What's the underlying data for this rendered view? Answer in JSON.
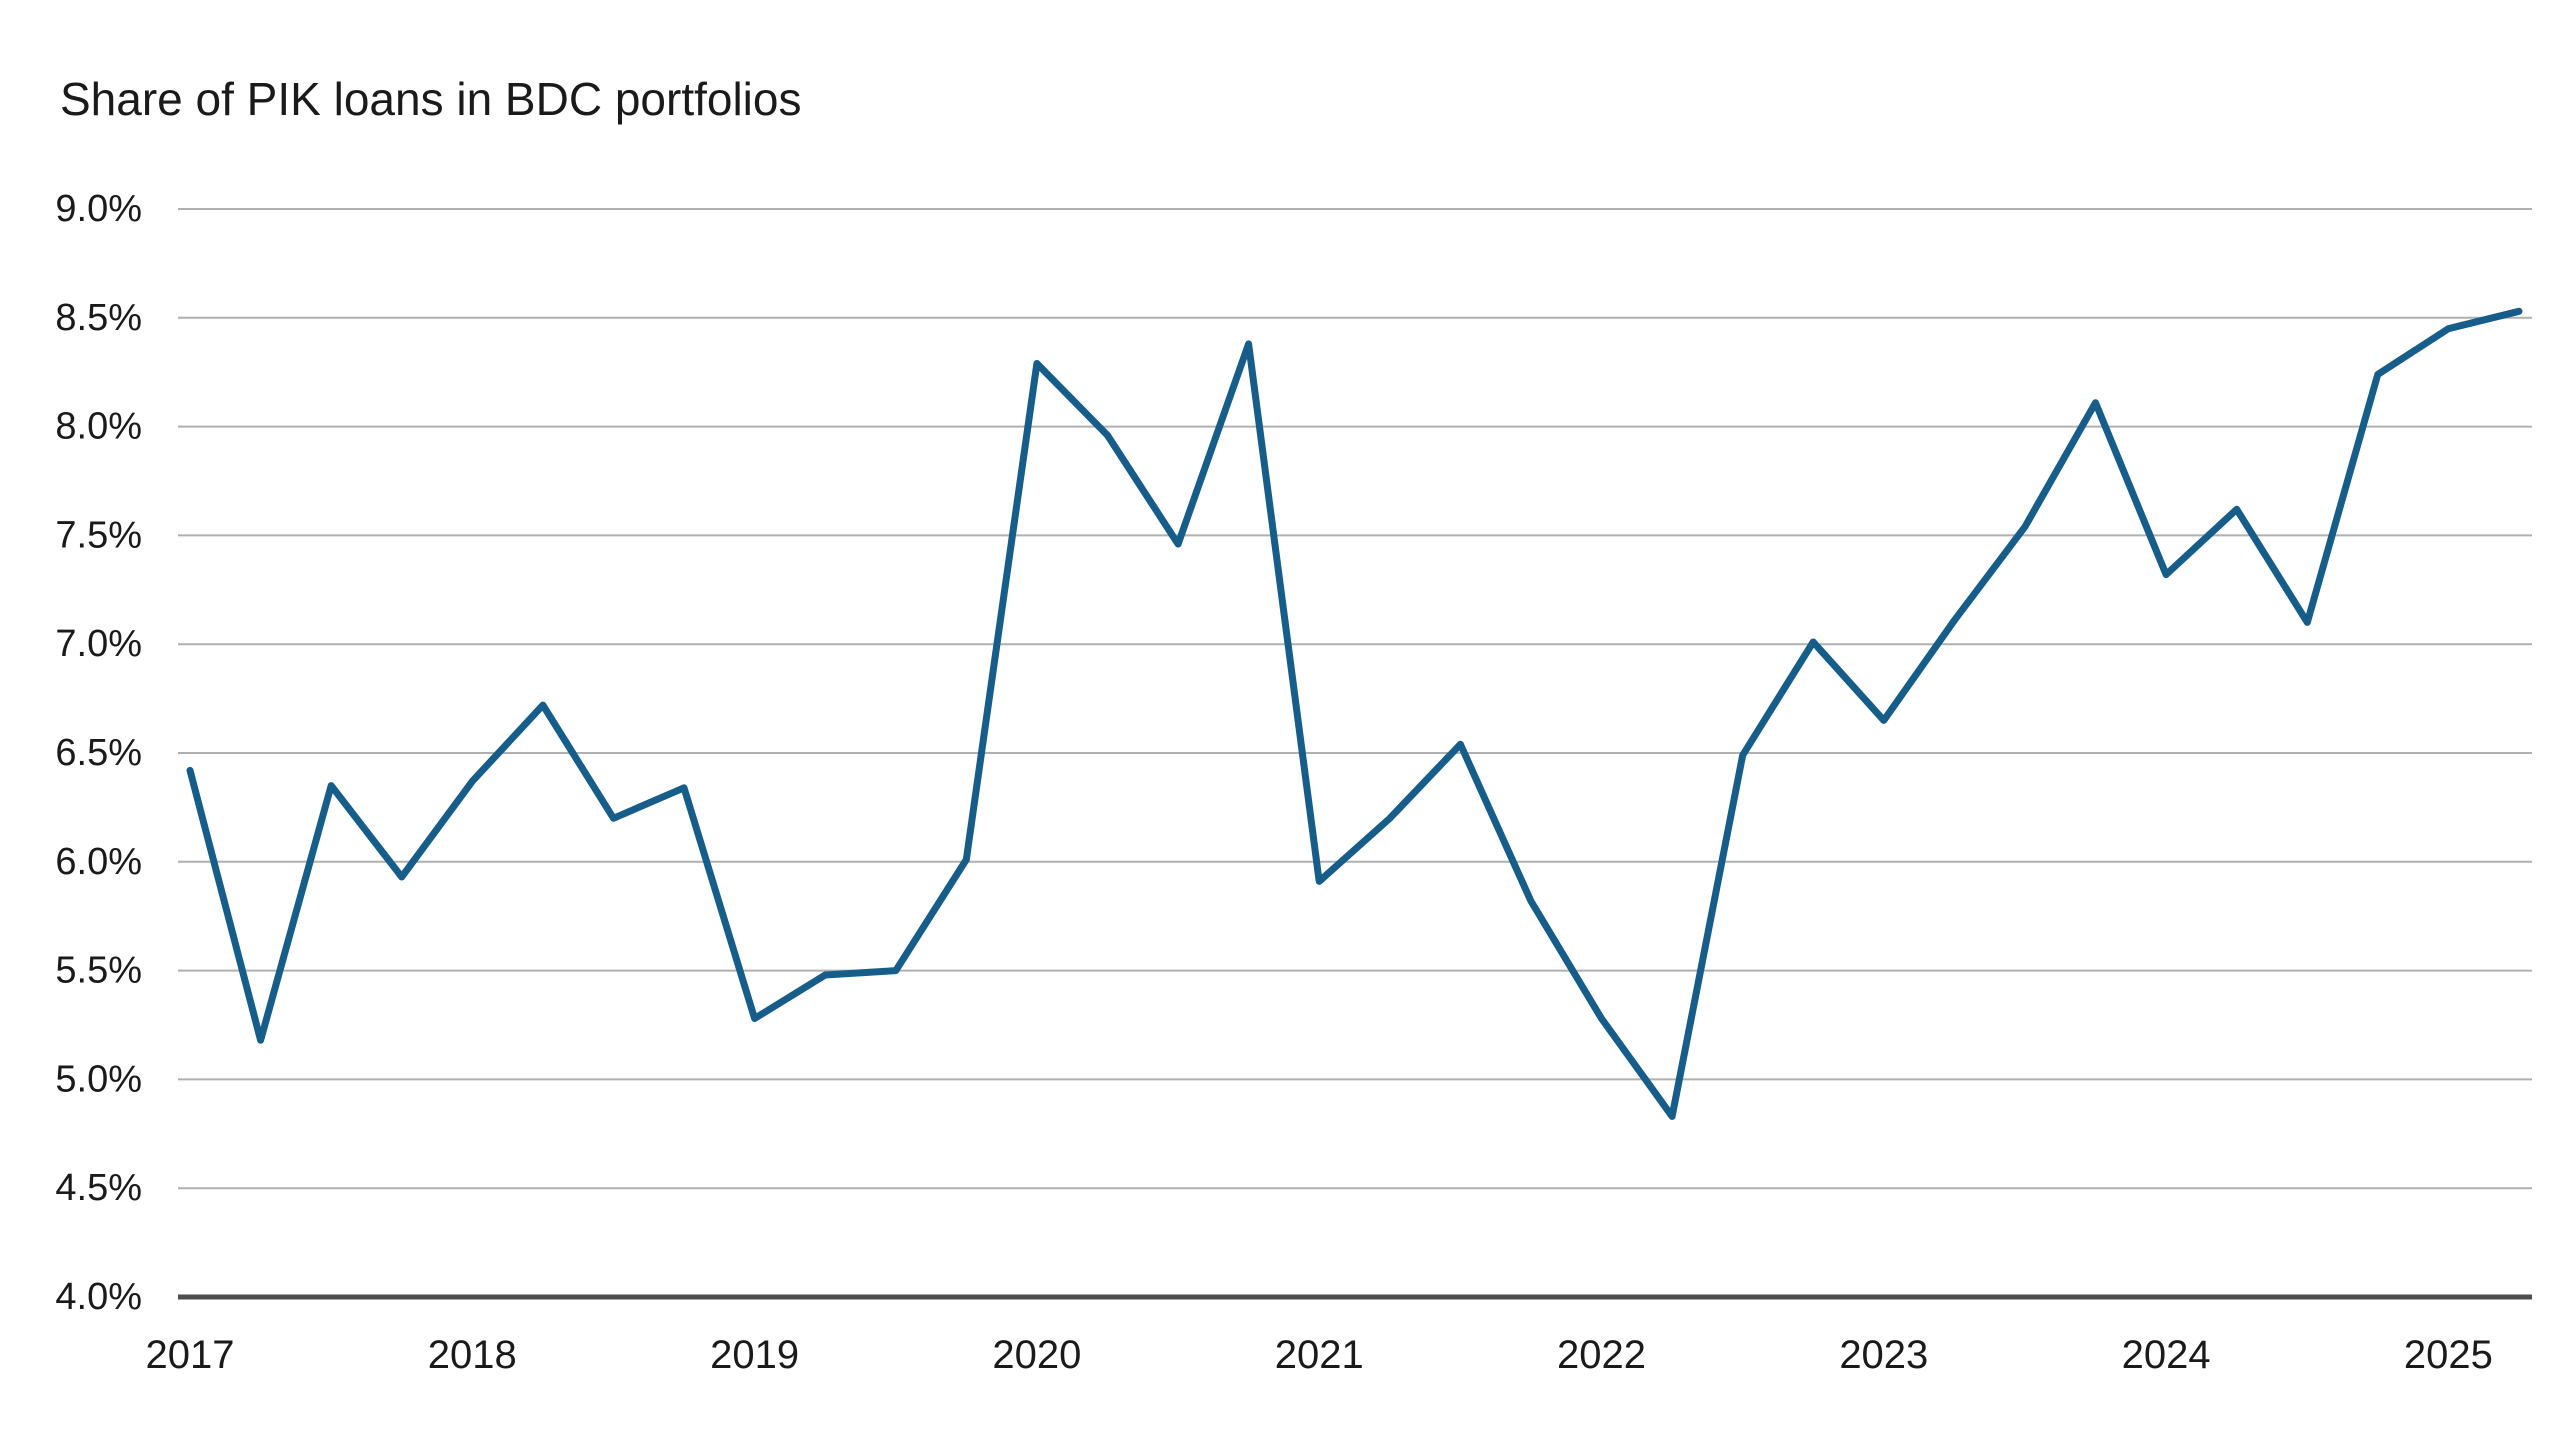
{
  "title": "Share of PIK loans in BDC portfolios",
  "colors": {
    "line": "#175d8a",
    "gridline": "#b0b0b0",
    "axis_line": "#4d4d4d",
    "text": "#1a1a1a",
    "background": "#ffffff"
  },
  "chart_data": {
    "type": "line",
    "title": "Share of PIK loans in BDC portfolios",
    "unit": "%",
    "ylim": [
      4.0,
      9.0
    ],
    "y_ticks": [
      4.0,
      4.5,
      5.0,
      5.5,
      6.0,
      6.5,
      7.0,
      7.5,
      8.0,
      8.5,
      9.0
    ],
    "y_tick_labels": [
      "4.0%",
      "4.5%",
      "5.0%",
      "5.5%",
      "6.0%",
      "6.5%",
      "7.0%",
      "7.5%",
      "8.0%",
      "8.5%",
      "9.0%"
    ],
    "x_tick_labels": [
      "2017",
      "2018",
      "2019",
      "2020",
      "2021",
      "2022",
      "2023",
      "2024",
      "2025"
    ],
    "x_tick_indices": [
      0,
      4,
      8,
      12,
      16,
      20,
      24,
      28,
      32
    ],
    "grid": "horizontal",
    "legend": "none",
    "x": [
      "2017 Q1",
      "2017 Q2",
      "2017 Q3",
      "2017 Q4",
      "2018 Q1",
      "2018 Q2",
      "2018 Q3",
      "2018 Q4",
      "2019 Q1",
      "2019 Q2",
      "2019 Q3",
      "2019 Q4",
      "2020 Q1",
      "2020 Q2",
      "2020 Q3",
      "2020 Q4",
      "2021 Q1",
      "2021 Q2",
      "2021 Q3",
      "2021 Q4",
      "2022 Q1",
      "2022 Q2",
      "2022 Q3",
      "2022 Q4",
      "2023 Q1",
      "2023 Q2",
      "2023 Q3",
      "2023 Q4",
      "2024 Q1",
      "2024 Q2",
      "2024 Q3",
      "2024 Q4",
      "2025 Q1",
      "2025 Q2"
    ],
    "values": [
      6.42,
      5.18,
      6.35,
      5.93,
      6.37,
      6.72,
      6.2,
      6.34,
      5.28,
      5.48,
      5.5,
      6.01,
      8.29,
      7.96,
      7.46,
      8.38,
      5.91,
      6.2,
      6.54,
      5.82,
      5.28,
      4.83,
      6.49,
      7.01,
      6.65,
      7.11,
      7.54,
      8.11,
      7.32,
      7.62,
      7.1,
      8.24,
      8.45,
      8.53
    ]
  }
}
